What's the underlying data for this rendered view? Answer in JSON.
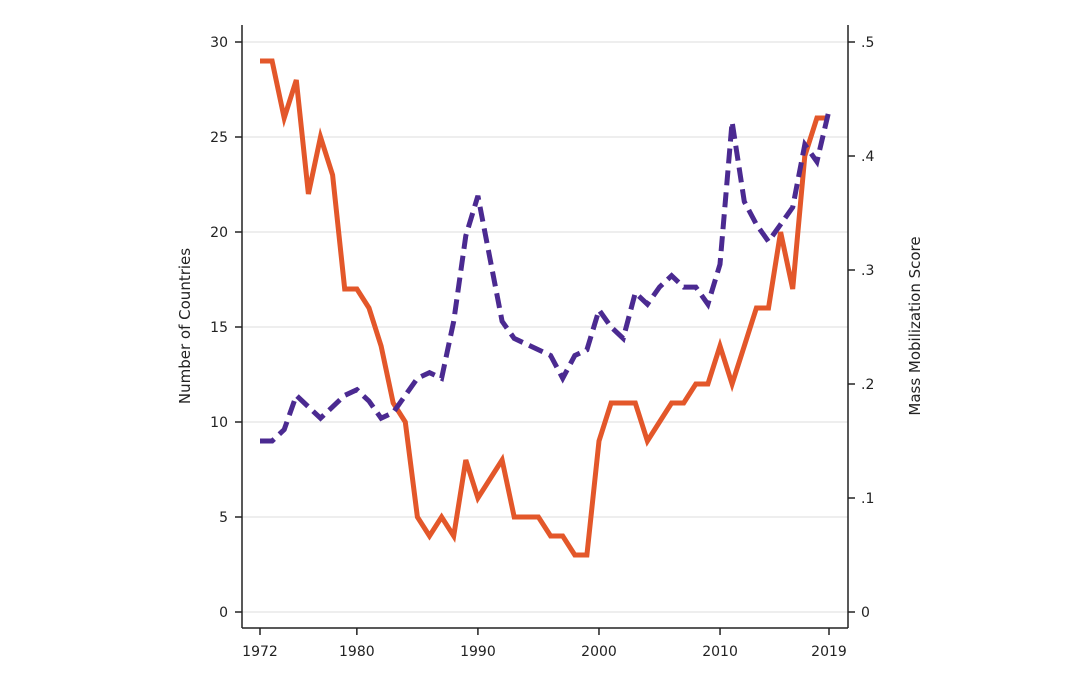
{
  "chart_data": {
    "type": "line",
    "title": "",
    "xlabel": "",
    "ylabel_left": "Number of Countries",
    "ylabel_right": "Mass Mobilization Score",
    "xlim": [
      1972,
      2019
    ],
    "ylim_left": [
      0,
      30
    ],
    "ylim_right": [
      0,
      0.5
    ],
    "grid": true,
    "x_ticks": [
      1972,
      1980,
      1990,
      2000,
      2010,
      2019
    ],
    "y_ticks_left": [
      0,
      5,
      10,
      15,
      20,
      25,
      30
    ],
    "y_ticks_right": [
      {
        "value": 0,
        "label": "0"
      },
      {
        "value": 0.1,
        "label": ".1"
      },
      {
        "value": 0.2,
        "label": ".2"
      },
      {
        "value": 0.3,
        "label": ".3"
      },
      {
        "value": 0.4,
        "label": ".4"
      },
      {
        "value": 0.5,
        "label": ".5"
      }
    ],
    "x": [
      1972,
      1973,
      1974,
      1975,
      1976,
      1977,
      1978,
      1979,
      1980,
      1981,
      1982,
      1983,
      1984,
      1985,
      1986,
      1987,
      1988,
      1989,
      1990,
      1991,
      1992,
      1993,
      1994,
      1995,
      1996,
      1997,
      1998,
      1999,
      2000,
      2001,
      2002,
      2003,
      2004,
      2005,
      2006,
      2007,
      2008,
      2009,
      2010,
      2011,
      2012,
      2013,
      2014,
      2015,
      2016,
      2017,
      2018,
      2019
    ],
    "series": [
      {
        "name": "Number of Countries",
        "axis": "left",
        "color": "#e3572a",
        "style": "solid",
        "values": [
          29,
          29,
          26,
          28,
          22,
          25,
          23,
          17,
          17,
          16,
          14,
          11,
          10,
          5,
          4,
          5,
          4,
          8,
          6,
          7,
          8,
          5,
          5,
          5,
          4,
          4,
          3,
          3,
          9,
          11,
          11,
          11,
          9,
          10,
          11,
          11,
          12,
          12,
          14,
          12,
          14,
          16,
          16,
          20,
          17,
          24,
          26,
          26
        ]
      },
      {
        "name": "Mass Mobilization Score",
        "axis": "right",
        "color": "#4b2a91",
        "style": "dashed",
        "values": [
          0.15,
          0.15,
          0.16,
          0.19,
          0.18,
          0.17,
          0.18,
          0.19,
          0.195,
          0.185,
          0.17,
          0.175,
          0.19,
          0.205,
          0.21,
          0.205,
          0.255,
          0.33,
          0.365,
          0.31,
          0.255,
          0.24,
          0.235,
          0.23,
          0.225,
          0.205,
          0.225,
          0.23,
          0.265,
          0.25,
          0.24,
          0.28,
          0.27,
          0.285,
          0.295,
          0.285,
          0.285,
          0.27,
          0.305,
          0.43,
          0.36,
          0.34,
          0.325,
          0.34,
          0.355,
          0.41,
          0.395,
          0.44
        ]
      }
    ]
  }
}
